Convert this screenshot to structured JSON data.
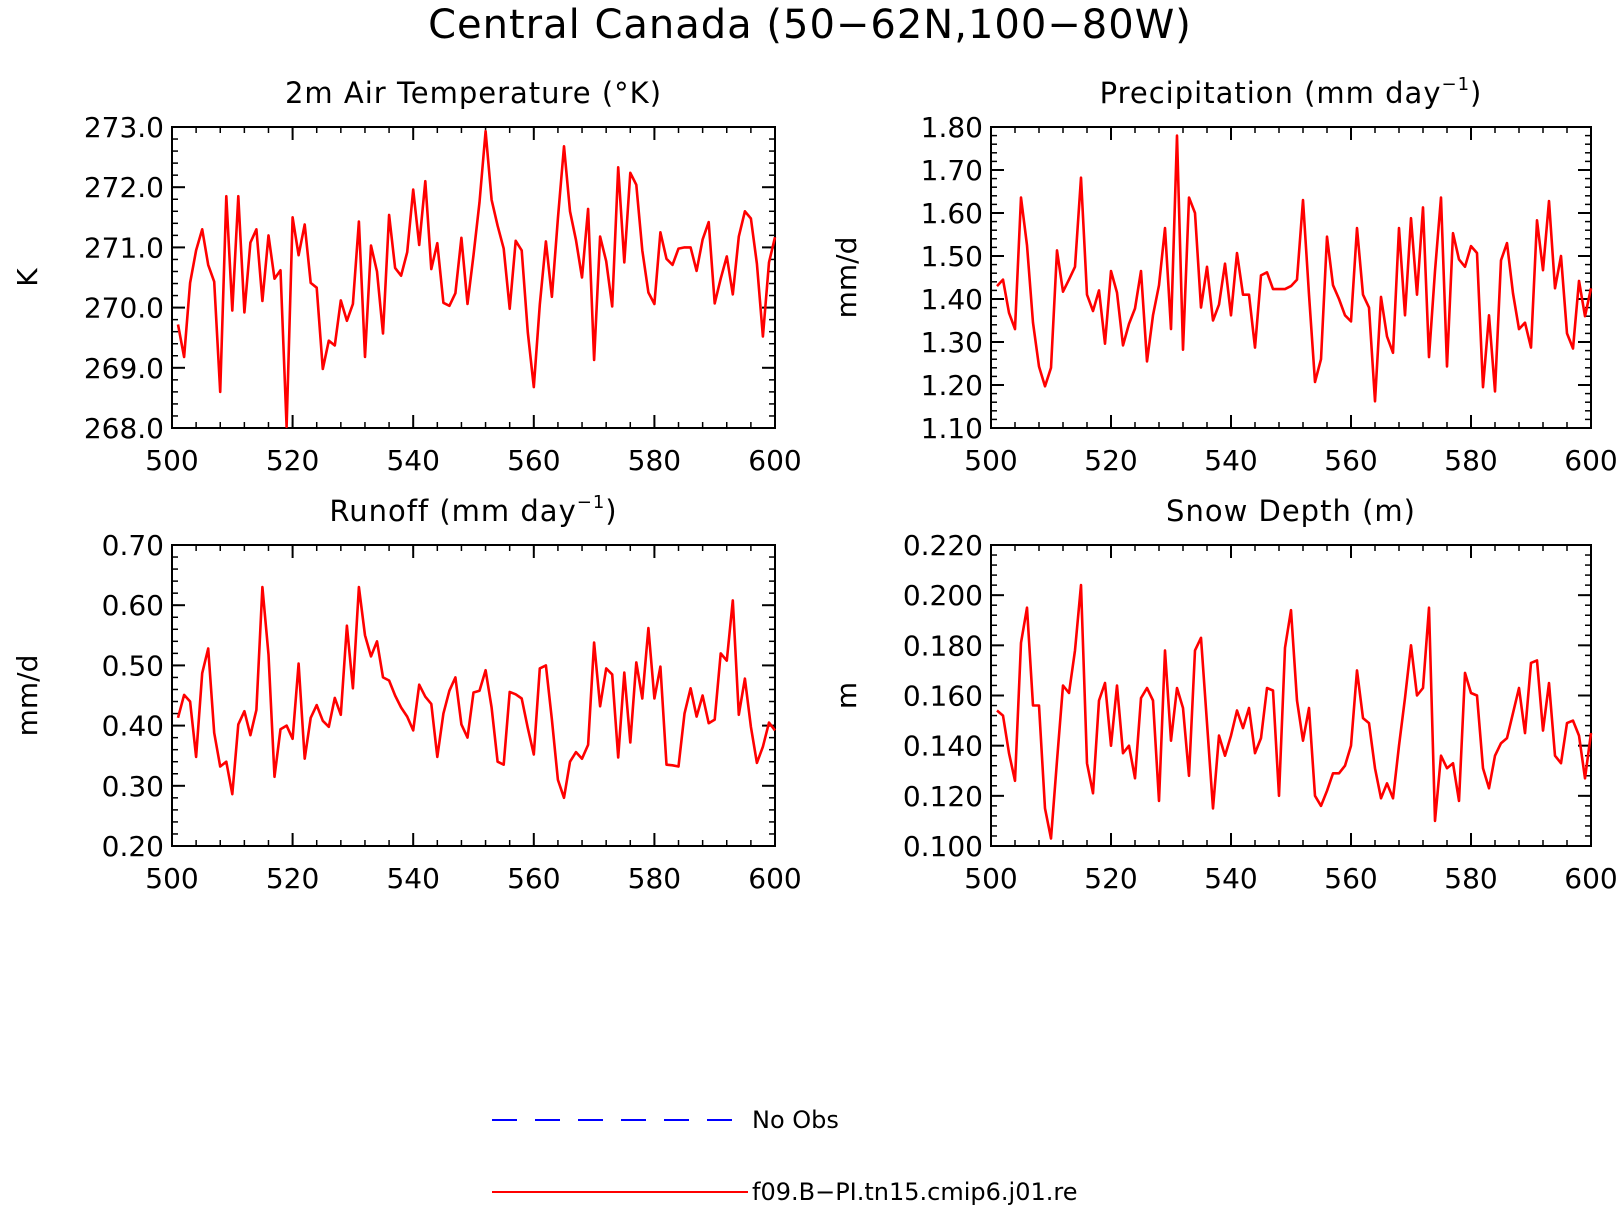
{
  "chart_data": {
    "title": "Central Canada (50−62N,100−80W)",
    "legend": [
      {
        "label": "No Obs",
        "color": "#0000ff",
        "style": "dashed"
      },
      {
        "label": "f09.B−PI.tn15.cmip6.j01.re",
        "color": "#ff0000",
        "style": "solid"
      }
    ],
    "panels": [
      {
        "type": "line",
        "title_main": "2m Air Temperature (°K)",
        "title_sup": "",
        "title_after": "",
        "ylabel": "K",
        "xlim": [
          500,
          600
        ],
        "ylim": [
          268,
          273
        ],
        "xticks": [
          500,
          520,
          540,
          560,
          580,
          600
        ],
        "yticks": [
          268,
          269,
          270,
          271,
          272,
          273
        ],
        "ytick_labels": [
          "268.0",
          "269.0",
          "270.0",
          "271.0",
          "272.0",
          "273.0"
        ],
        "minor_y": 0.2,
        "x_start": 501,
        "series": [
          {
            "color": "#ff0000",
            "values": [
              269.72,
              269.18,
              270.41,
              270.95,
              271.3,
              270.71,
              270.43,
              268.6,
              271.85,
              269.95,
              271.85,
              269.92,
              271.08,
              271.3,
              270.11,
              271.2,
              270.48,
              270.62,
              268.02,
              271.5,
              270.87,
              271.38,
              270.41,
              270.33,
              268.98,
              269.45,
              269.37,
              270.12,
              269.78,
              270.06,
              271.43,
              269.18,
              271.03,
              270.6,
              269.57,
              271.54,
              270.66,
              270.53,
              270.92,
              271.96,
              271.04,
              272.1,
              270.64,
              271.07,
              270.08,
              270.03,
              270.24,
              271.16,
              270.06,
              270.87,
              271.75,
              272.93,
              271.79,
              271.36,
              270.98,
              269.98,
              271.11,
              270.95,
              269.59,
              268.68,
              270.05,
              271.1,
              270.18,
              271.48,
              272.68,
              271.6,
              271.12,
              270.5,
              271.64,
              269.13,
              271.18,
              270.77,
              270.02,
              272.33,
              270.75,
              272.24,
              272.04,
              270.95,
              270.25,
              270.06,
              271.25,
              270.81,
              270.71,
              270.98,
              271.0,
              271.0,
              270.61,
              271.13,
              271.42,
              270.07,
              270.48,
              270.85,
              270.22,
              271.18,
              271.6,
              271.48,
              270.73,
              269.52,
              270.75,
              271.17
            ]
          }
        ]
      },
      {
        "type": "line",
        "title_main": "Precipitation (mm day",
        "title_sup": "−1",
        "title_after": ")",
        "ylabel": "mm/d",
        "xlim": [
          500,
          600
        ],
        "ylim": [
          1.1,
          1.8
        ],
        "xticks": [
          500,
          520,
          540,
          560,
          580,
          600
        ],
        "yticks": [
          1.1,
          1.2,
          1.3,
          1.4,
          1.5,
          1.6,
          1.7,
          1.8
        ],
        "ytick_labels": [
          "1.10",
          "1.20",
          "1.30",
          "1.40",
          "1.50",
          "1.60",
          "1.70",
          "1.80"
        ],
        "minor_y": 0.02,
        "x_start": 501,
        "series": [
          {
            "color": "#ff0000",
            "values": [
              1.43,
              1.445,
              1.368,
              1.33,
              1.636,
              1.525,
              1.345,
              1.243,
              1.197,
              1.24,
              1.513,
              1.417,
              1.445,
              1.475,
              1.682,
              1.41,
              1.372,
              1.42,
              1.296,
              1.465,
              1.415,
              1.292,
              1.342,
              1.378,
              1.465,
              1.255,
              1.362,
              1.432,
              1.565,
              1.33,
              1.78,
              1.282,
              1.636,
              1.6,
              1.38,
              1.475,
              1.35,
              1.387,
              1.482,
              1.362,
              1.507,
              1.41,
              1.41,
              1.287,
              1.455,
              1.462,
              1.423,
              1.423,
              1.423,
              1.43,
              1.445,
              1.63,
              1.41,
              1.207,
              1.26,
              1.545,
              1.432,
              1.4,
              1.362,
              1.348,
              1.565,
              1.41,
              1.38,
              1.162,
              1.405,
              1.313,
              1.275,
              1.565,
              1.362,
              1.588,
              1.41,
              1.613,
              1.265,
              1.465,
              1.636,
              1.243,
              1.553,
              1.492,
              1.475,
              1.523,
              1.507,
              1.195,
              1.362,
              1.185,
              1.49,
              1.53,
              1.413,
              1.33,
              1.345,
              1.287,
              1.583,
              1.467,
              1.628,
              1.425,
              1.5,
              1.32,
              1.285,
              1.442,
              1.36,
              1.425
            ]
          }
        ]
      },
      {
        "type": "line",
        "title_main": "Runoff (mm day",
        "title_sup": "−1",
        "title_after": ")",
        "ylabel": "mm/d",
        "xlim": [
          500,
          600
        ],
        "ylim": [
          0.2,
          0.7
        ],
        "xticks": [
          500,
          520,
          540,
          560,
          580,
          600
        ],
        "yticks": [
          0.2,
          0.3,
          0.4,
          0.5,
          0.6,
          0.7
        ],
        "ytick_labels": [
          "0.20",
          "0.30",
          "0.40",
          "0.50",
          "0.60",
          "0.70"
        ],
        "minor_y": 0.02,
        "x_start": 501,
        "series": [
          {
            "color": "#ff0000",
            "values": [
              0.413,
              0.451,
              0.44,
              0.348,
              0.487,
              0.528,
              0.388,
              0.332,
              0.34,
              0.286,
              0.402,
              0.424,
              0.384,
              0.426,
              0.63,
              0.518,
              0.315,
              0.394,
              0.4,
              0.378,
              0.503,
              0.345,
              0.413,
              0.434,
              0.408,
              0.398,
              0.446,
              0.418,
              0.566,
              0.462,
              0.63,
              0.55,
              0.515,
              0.54,
              0.48,
              0.475,
              0.45,
              0.43,
              0.415,
              0.392,
              0.468,
              0.448,
              0.436,
              0.348,
              0.42,
              0.458,
              0.48,
              0.402,
              0.38,
              0.455,
              0.458,
              0.492,
              0.43,
              0.34,
              0.335,
              0.456,
              0.452,
              0.445,
              0.396,
              0.352,
              0.495,
              0.5,
              0.41,
              0.31,
              0.28,
              0.34,
              0.356,
              0.345,
              0.368,
              0.538,
              0.432,
              0.495,
              0.485,
              0.347,
              0.488,
              0.372,
              0.505,
              0.445,
              0.562,
              0.445,
              0.498,
              0.335,
              0.334,
              0.332,
              0.42,
              0.462,
              0.415,
              0.45,
              0.404,
              0.41,
              0.52,
              0.508,
              0.608,
              0.418,
              0.478,
              0.398,
              0.338,
              0.365,
              0.405,
              0.392
            ]
          }
        ]
      },
      {
        "type": "line",
        "title_main": "Snow Depth (m)",
        "title_sup": "",
        "title_after": "",
        "ylabel": "m",
        "xlim": [
          500,
          600
        ],
        "ylim": [
          0.1,
          0.22
        ],
        "xticks": [
          500,
          520,
          540,
          560,
          580,
          600
        ],
        "yticks": [
          0.1,
          0.12,
          0.14,
          0.16,
          0.18,
          0.2,
          0.22
        ],
        "ytick_labels": [
          "0.100",
          "0.120",
          "0.140",
          "0.160",
          "0.180",
          "0.200",
          "0.220"
        ],
        "minor_y": 0.004,
        "x_start": 501,
        "series": [
          {
            "color": "#ff0000",
            "values": [
              0.154,
              0.152,
              0.137,
              0.126,
              0.181,
              0.195,
              0.156,
              0.156,
              0.115,
              0.103,
              0.134,
              0.164,
              0.161,
              0.178,
              0.204,
              0.133,
              0.121,
              0.158,
              0.165,
              0.14,
              0.164,
              0.137,
              0.14,
              0.127,
              0.159,
              0.163,
              0.158,
              0.118,
              0.178,
              0.142,
              0.163,
              0.155,
              0.128,
              0.178,
              0.183,
              0.149,
              0.115,
              0.144,
              0.136,
              0.144,
              0.154,
              0.147,
              0.155,
              0.137,
              0.143,
              0.163,
              0.162,
              0.12,
              0.179,
              0.194,
              0.158,
              0.142,
              0.155,
              0.12,
              0.116,
              0.122,
              0.129,
              0.129,
              0.132,
              0.14,
              0.17,
              0.151,
              0.149,
              0.131,
              0.119,
              0.125,
              0.119,
              0.14,
              0.159,
              0.18,
              0.16,
              0.163,
              0.195,
              0.11,
              0.136,
              0.131,
              0.133,
              0.118,
              0.169,
              0.161,
              0.16,
              0.131,
              0.123,
              0.136,
              0.141,
              0.143,
              0.153,
              0.163,
              0.145,
              0.173,
              0.174,
              0.146,
              0.165,
              0.136,
              0.133,
              0.149,
              0.15,
              0.144,
              0.127,
              0.145
            ]
          }
        ]
      }
    ]
  }
}
